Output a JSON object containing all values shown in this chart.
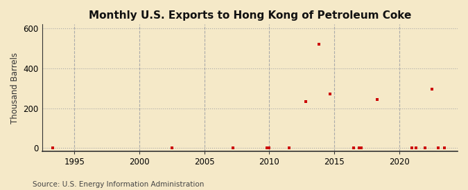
{
  "title": "Monthly U.S. Exports to Hong Kong of Petroleum Coke",
  "ylabel": "Thousand Barrels",
  "source": "Source: U.S. Energy Information Administration",
  "background_color": "#f5e9c8",
  "plot_bg_color": "#f5e9c8",
  "dot_color": "#cc0000",
  "xlim": [
    1992.5,
    2024.5
  ],
  "ylim": [
    -15,
    620
  ],
  "xticks": [
    1995,
    2000,
    2005,
    2010,
    2015,
    2020
  ],
  "yticks": [
    0,
    200,
    400,
    600
  ],
  "data_points": [
    [
      1993.3,
      2
    ],
    [
      2002.5,
      2
    ],
    [
      2007.2,
      2
    ],
    [
      2009.8,
      2
    ],
    [
      2010.0,
      2
    ],
    [
      2011.5,
      2
    ],
    [
      2012.8,
      235
    ],
    [
      2013.8,
      520
    ],
    [
      2014.7,
      270
    ],
    [
      2016.5,
      2
    ],
    [
      2016.9,
      2
    ],
    [
      2017.1,
      2
    ],
    [
      2018.3,
      245
    ],
    [
      2021.0,
      2
    ],
    [
      2021.3,
      2
    ],
    [
      2022.0,
      2
    ],
    [
      2022.5,
      295
    ],
    [
      2023.0,
      2
    ],
    [
      2023.5,
      2
    ]
  ],
  "grid_color": "#aaaaaa",
  "title_fontsize": 11,
  "label_fontsize": 8.5,
  "tick_fontsize": 8.5,
  "source_fontsize": 7.5
}
